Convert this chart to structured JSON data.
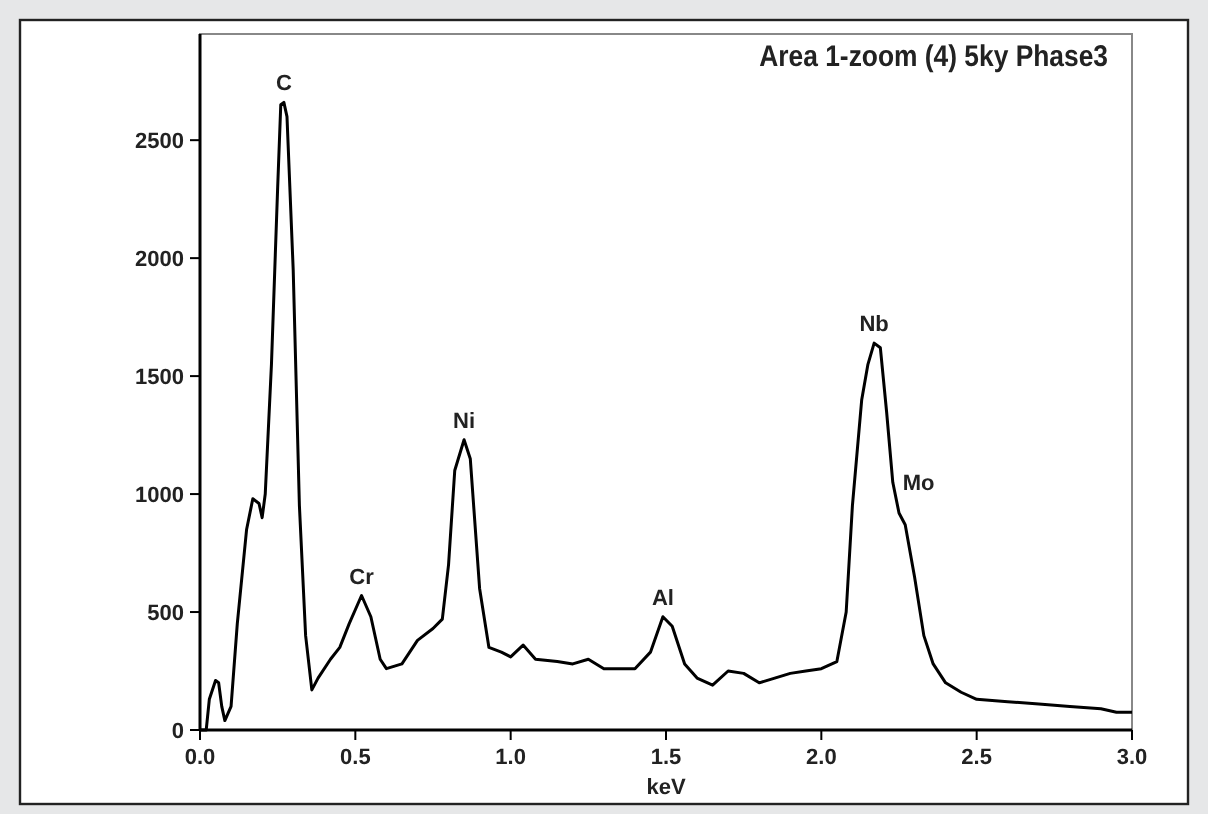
{
  "chart_data": {
    "type": "line",
    "title": "Area 1-zoom (4) 5ky Phase3",
    "xlabel": "keV",
    "xlim": [
      0,
      3
    ],
    "xticks": [
      {
        "value": 0,
        "label": "0.0"
      },
      {
        "value": 0.5,
        "label": "0.5"
      },
      {
        "value": 1,
        "label": "1.0"
      },
      {
        "value": 1.5,
        "label": "1.5"
      },
      {
        "value": 2,
        "label": "2.0"
      },
      {
        "value": 2.5,
        "label": "2.5"
      },
      {
        "value": 3,
        "label": "3.0"
      }
    ],
    "ylim": [
      0,
      2950
    ],
    "yticks": [
      0,
      500,
      1000,
      1500,
      2000,
      2500
    ],
    "grid": false,
    "marker": "none",
    "line_style": "solid",
    "series": [
      {
        "color": "#000000",
        "x": [
          0,
          0.02,
          0.03,
          0.05,
          0.06,
          0.07,
          0.08,
          0.1,
          0.12,
          0.15,
          0.17,
          0.19,
          0.2,
          0.21,
          0.23,
          0.25,
          0.26,
          0.27,
          0.28,
          0.3,
          0.32,
          0.34,
          0.36,
          0.38,
          0.42,
          0.45,
          0.48,
          0.52,
          0.55,
          0.58,
          0.6,
          0.65,
          0.7,
          0.75,
          0.78,
          0.8,
          0.82,
          0.85,
          0.87,
          0.9,
          0.93,
          0.97,
          1,
          1.04,
          1.08,
          1.15,
          1.2,
          1.25,
          1.3,
          1.4,
          1.45,
          1.49,
          1.52,
          1.56,
          1.6,
          1.65,
          1.7,
          1.75,
          1.8,
          1.85,
          1.9,
          1.95,
          2,
          2.05,
          2.08,
          2.1,
          2.13,
          2.15,
          2.17,
          2.19,
          2.21,
          2.23,
          2.25,
          2.27,
          2.3,
          2.33,
          2.36,
          2.4,
          2.45,
          2.5,
          2.6,
          2.7,
          2.8,
          2.9,
          2.95,
          3
        ],
        "values": [
          0,
          0,
          130,
          210,
          200,
          100,
          40,
          100,
          450,
          850,
          980,
          960,
          900,
          1000,
          1550,
          2300,
          2650,
          2660,
          2600,
          1950,
          950,
          400,
          170,
          220,
          300,
          350,
          450,
          570,
          480,
          300,
          260,
          280,
          380,
          430,
          470,
          700,
          1100,
          1230,
          1150,
          600,
          350,
          330,
          310,
          360,
          300,
          290,
          280,
          300,
          260,
          260,
          330,
          480,
          440,
          280,
          220,
          190,
          250,
          240,
          200,
          220,
          240,
          250,
          260,
          290,
          500,
          950,
          1400,
          1550,
          1640,
          1620,
          1350,
          1050,
          920,
          870,
          650,
          400,
          280,
          200,
          160,
          130,
          120,
          110,
          100,
          90,
          75,
          75
        ]
      }
    ],
    "annotations": [
      {
        "text": "C",
        "x": 0.27,
        "y": 2660
      },
      {
        "text": "Cr",
        "x": 0.52,
        "y": 570
      },
      {
        "text": "Ni",
        "x": 0.85,
        "y": 1230
      },
      {
        "text": "Al",
        "x": 1.49,
        "y": 480
      },
      {
        "text": "Nb",
        "x": 2.17,
        "y": 1640
      },
      {
        "text": "Mo",
        "x": 2.23,
        "y": 1050
      }
    ]
  }
}
